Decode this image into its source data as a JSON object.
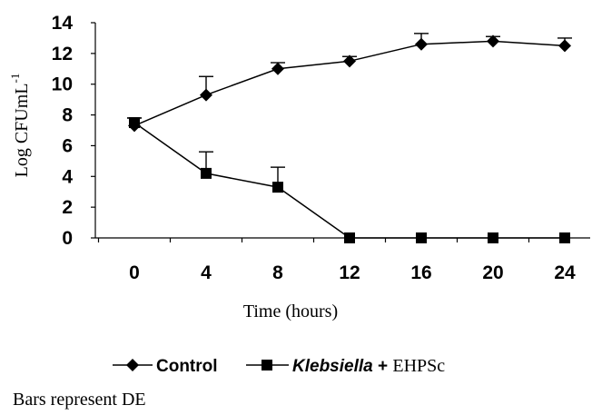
{
  "chart_data": {
    "type": "line",
    "x": [
      0,
      4,
      8,
      12,
      16,
      20,
      24
    ],
    "x_tick_labels": [
      "0",
      "4",
      "8",
      "12",
      "16",
      "20",
      "24"
    ],
    "xlabel": "Time (hours)",
    "ylabel_main": "Log CFUmL",
    "ylabel_superscript": "-1",
    "ylim": [
      0,
      14
    ],
    "y_ticks": [
      0,
      2,
      4,
      6,
      8,
      10,
      12,
      14
    ],
    "y_tick_labels": [
      "0",
      "2",
      "4",
      "6",
      "8",
      "10",
      "12",
      "14"
    ],
    "grid": false,
    "legend_position": "bottom",
    "series": [
      {
        "name": "Control",
        "marker": "diamond",
        "values": [
          7.3,
          9.3,
          11.0,
          11.5,
          12.6,
          12.8,
          12.5
        ],
        "error_upper": [
          0.5,
          1.2,
          0.4,
          0.3,
          0.7,
          0.3,
          0.5
        ]
      },
      {
        "name_italic": "Klebsiella",
        "name_connector": " + ",
        "name_suffix": "EHPSc",
        "marker": "square",
        "values": [
          7.5,
          4.2,
          3.3,
          0.0,
          0.0,
          0.0,
          0.0
        ],
        "error_upper": [
          0.3,
          1.4,
          1.3,
          0.0,
          0.0,
          0.0,
          0.0
        ]
      }
    ],
    "note": "Bars represent DE",
    "color": "#000000"
  }
}
